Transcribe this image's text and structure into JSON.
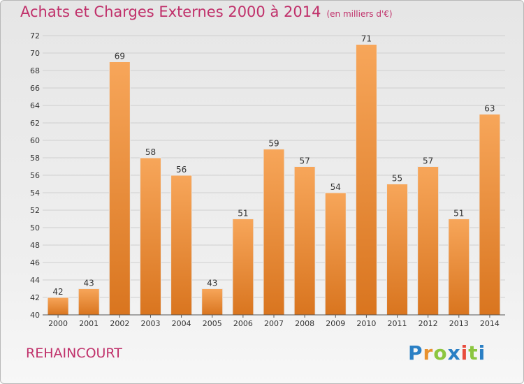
{
  "title": "Achats et Charges Externes 2000 à 2014",
  "subtitle": "(en milliers d'€)",
  "commune": "REHAINCOURT",
  "logo": {
    "text": "Proxiti",
    "letters": [
      {
        "ch": "P",
        "color": "#2a7fc4"
      },
      {
        "ch": "r",
        "color": "#e8912e"
      },
      {
        "ch": "o",
        "color": "#8cc63f"
      },
      {
        "ch": "x",
        "color": "#2a7fc4"
      },
      {
        "ch": "i",
        "color": "#e84c3d"
      },
      {
        "ch": "t",
        "color": "#8cc63f"
      },
      {
        "ch": "i",
        "color": "#2a7fc4"
      }
    ]
  },
  "chart_data": {
    "type": "bar",
    "categories": [
      "2000",
      "2001",
      "2002",
      "2003",
      "2004",
      "2005",
      "2006",
      "2007",
      "2008",
      "2009",
      "2010",
      "2011",
      "2012",
      "2013",
      "2014"
    ],
    "values": [
      42,
      43,
      69,
      58,
      56,
      43,
      51,
      59,
      57,
      54,
      71,
      55,
      57,
      51,
      63
    ],
    "ylim": [
      40,
      72
    ],
    "yticks": [
      40,
      42,
      44,
      46,
      48,
      50,
      52,
      54,
      56,
      58,
      60,
      62,
      64,
      66,
      68,
      70,
      72
    ],
    "grid": true,
    "bar_color_top": "#f7a65a",
    "bar_color_bottom": "#d9751f",
    "title_color": "#c0306a"
  }
}
